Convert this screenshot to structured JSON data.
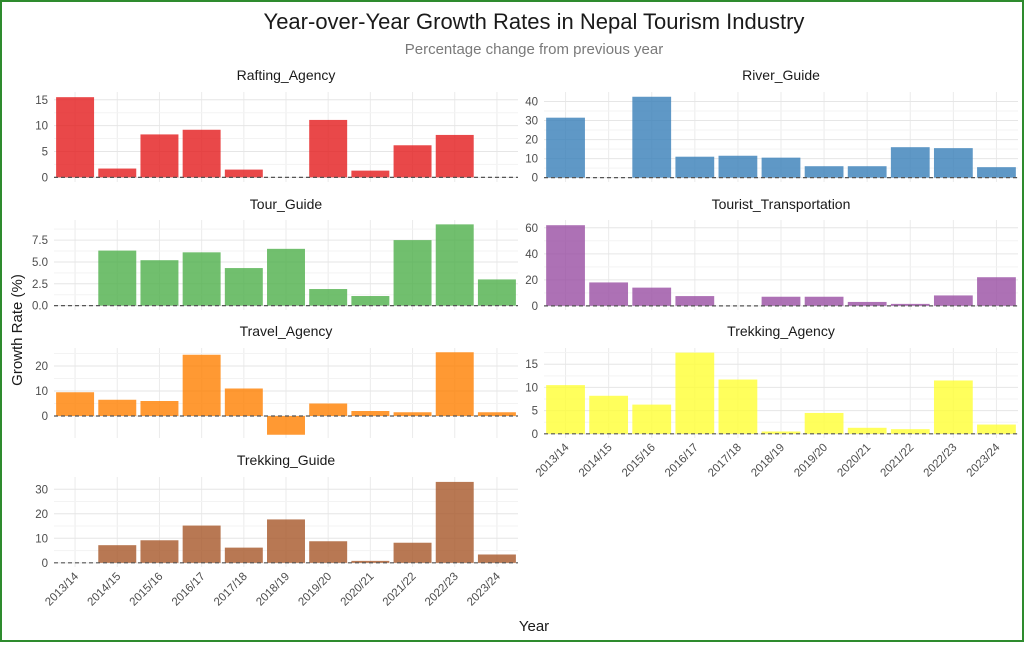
{
  "title": "Year-over-Year Growth Rates in Nepal Tourism Industry",
  "subtitle": "Percentage change from previous year",
  "xlabel": "Year",
  "ylabel": "Growth Rate (%)",
  "chart_data": {
    "type": "bar",
    "layout": "facet-grid 2 columns",
    "categories": [
      "2013/14",
      "2014/15",
      "2015/16",
      "2016/17",
      "2017/18",
      "2018/19",
      "2019/20",
      "2020/21",
      "2021/22",
      "2022/23",
      "2023/24"
    ],
    "panels": [
      {
        "name": "Rafting_Agency",
        "color": "#E41A1C",
        "values": [
          15.5,
          1.7,
          8.3,
          9.2,
          1.5,
          0,
          11.1,
          1.3,
          6.2,
          8.2,
          0
        ],
        "ylim": [
          -0.9,
          16.5
        ],
        "ticks": [
          0,
          5,
          10,
          15
        ],
        "tick_labels": [
          "0",
          "5",
          "10",
          "15"
        ]
      },
      {
        "name": "River_Guide",
        "color": "#377EB8",
        "values": [
          31.5,
          0,
          42.5,
          11,
          11.5,
          10.5,
          6,
          6,
          16,
          15.5,
          5.5
        ],
        "ylim": [
          -2.3,
          45.0
        ],
        "ticks": [
          0,
          10,
          20,
          30,
          40
        ],
        "tick_labels": [
          "0",
          "10",
          "20",
          "30",
          "40"
        ]
      },
      {
        "name": "Tour_Guide",
        "color": "#4DAF4A",
        "values": [
          0,
          6.3,
          5.2,
          6.1,
          4.3,
          6.5,
          1.9,
          1.1,
          7.5,
          9.3,
          3.0
        ],
        "ylim": [
          -0.5,
          9.8
        ],
        "ticks": [
          0,
          2.5,
          5.0,
          7.5
        ],
        "tick_labels": [
          "0.0",
          "2.5",
          "5.0",
          "7.5"
        ]
      },
      {
        "name": "Tourist_Transportation",
        "color": "#984EA3",
        "values": [
          62,
          18,
          14,
          7.5,
          0,
          7,
          7,
          3,
          1.5,
          8,
          22
        ],
        "ylim": [
          -3.2,
          66.0
        ],
        "ticks": [
          0,
          20,
          40,
          60
        ],
        "tick_labels": [
          "0",
          "20",
          "40",
          "60"
        ]
      },
      {
        "name": "Travel_Agency",
        "color": "#FF7F00",
        "values": [
          9.5,
          6.5,
          6,
          24.5,
          11,
          -7.5,
          5,
          2,
          1.5,
          25.5,
          1.5
        ],
        "ylim": [
          -8.8,
          27.2
        ],
        "ticks": [
          0,
          10,
          20
        ],
        "tick_labels": [
          "0",
          "10",
          "20"
        ]
      },
      {
        "name": "Trekking_Agency",
        "color": "#FFFF33",
        "values": [
          10.5,
          8.2,
          6.3,
          17.5,
          11.7,
          0.5,
          4.5,
          1.3,
          1.0,
          11.5,
          2.0
        ],
        "ylim": [
          -0.9,
          18.5
        ],
        "ticks": [
          0,
          5,
          10,
          15
        ],
        "tick_labels": [
          "0",
          "5",
          "10",
          "15"
        ]
      },
      {
        "name": "Trekking_Guide",
        "color": "#A65628",
        "values": [
          0,
          7.2,
          9.2,
          15.2,
          6.2,
          17.7,
          8.8,
          0.8,
          8.2,
          33,
          3.4
        ],
        "ylim": [
          -1.7,
          35.0
        ],
        "ticks": [
          0,
          10,
          20,
          30
        ],
        "tick_labels": [
          "0",
          "10",
          "20",
          "30"
        ]
      }
    ],
    "grid": true,
    "baseline": "dashed line at 0"
  }
}
